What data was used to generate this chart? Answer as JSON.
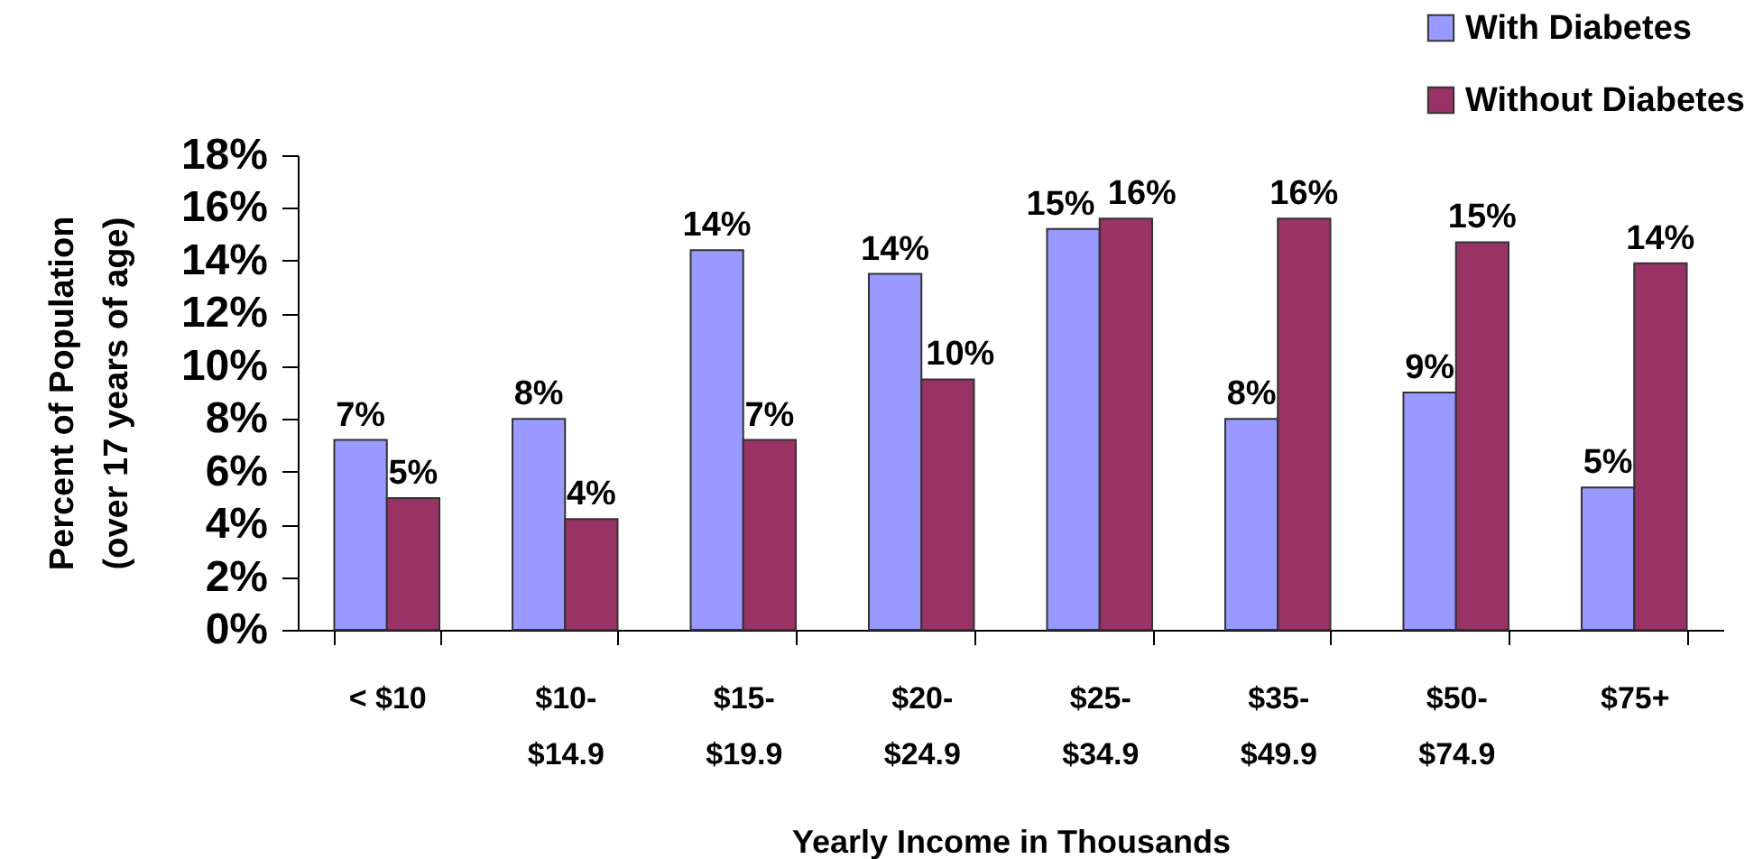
{
  "chart_data": {
    "type": "bar",
    "xlabel": "Yearly Income in Thousands",
    "ylabel": "Percent of Population (over 17 years of age)",
    "categories": [
      "< $10",
      "$10-$14.9",
      "$15-$19.9",
      "$20-$24.9",
      "$25-$34.9",
      "$35-$49.9",
      "$50-$74.9",
      "$75+"
    ],
    "series": [
      {
        "name": "With Diabetes",
        "color": "#9999ff",
        "values": [
          7.2,
          8.0,
          14.4,
          13.5,
          15.2,
          8.0,
          9.0,
          5.4
        ],
        "value_labels": [
          "7%",
          "8%",
          "14%",
          "14%",
          "15%",
          "8%",
          "9%",
          "5%"
        ]
      },
      {
        "name": "Without Diabetes",
        "color": "#993366",
        "values": [
          5.0,
          4.2,
          7.2,
          9.5,
          15.6,
          15.6,
          14.7,
          13.9
        ],
        "value_labels": [
          "5%",
          "4%",
          "7%",
          "10%",
          "16%",
          "16%",
          "15%",
          "14%"
        ]
      }
    ],
    "ylim": [
      0,
      18
    ],
    "yticks": [
      {
        "value": 0,
        "label": "0%"
      },
      {
        "value": 2,
        "label": "2%"
      },
      {
        "value": 4,
        "label": "4%"
      },
      {
        "value": 6,
        "label": "6%"
      },
      {
        "value": 8,
        "label": "8%"
      },
      {
        "value": 10,
        "label": "10%"
      },
      {
        "value": 12,
        "label": "12%"
      },
      {
        "value": 14,
        "label": "14%"
      },
      {
        "value": 16,
        "label": "16%"
      },
      {
        "value": 18,
        "label": "18%"
      }
    ],
    "grid": false,
    "legend": "top right"
  }
}
